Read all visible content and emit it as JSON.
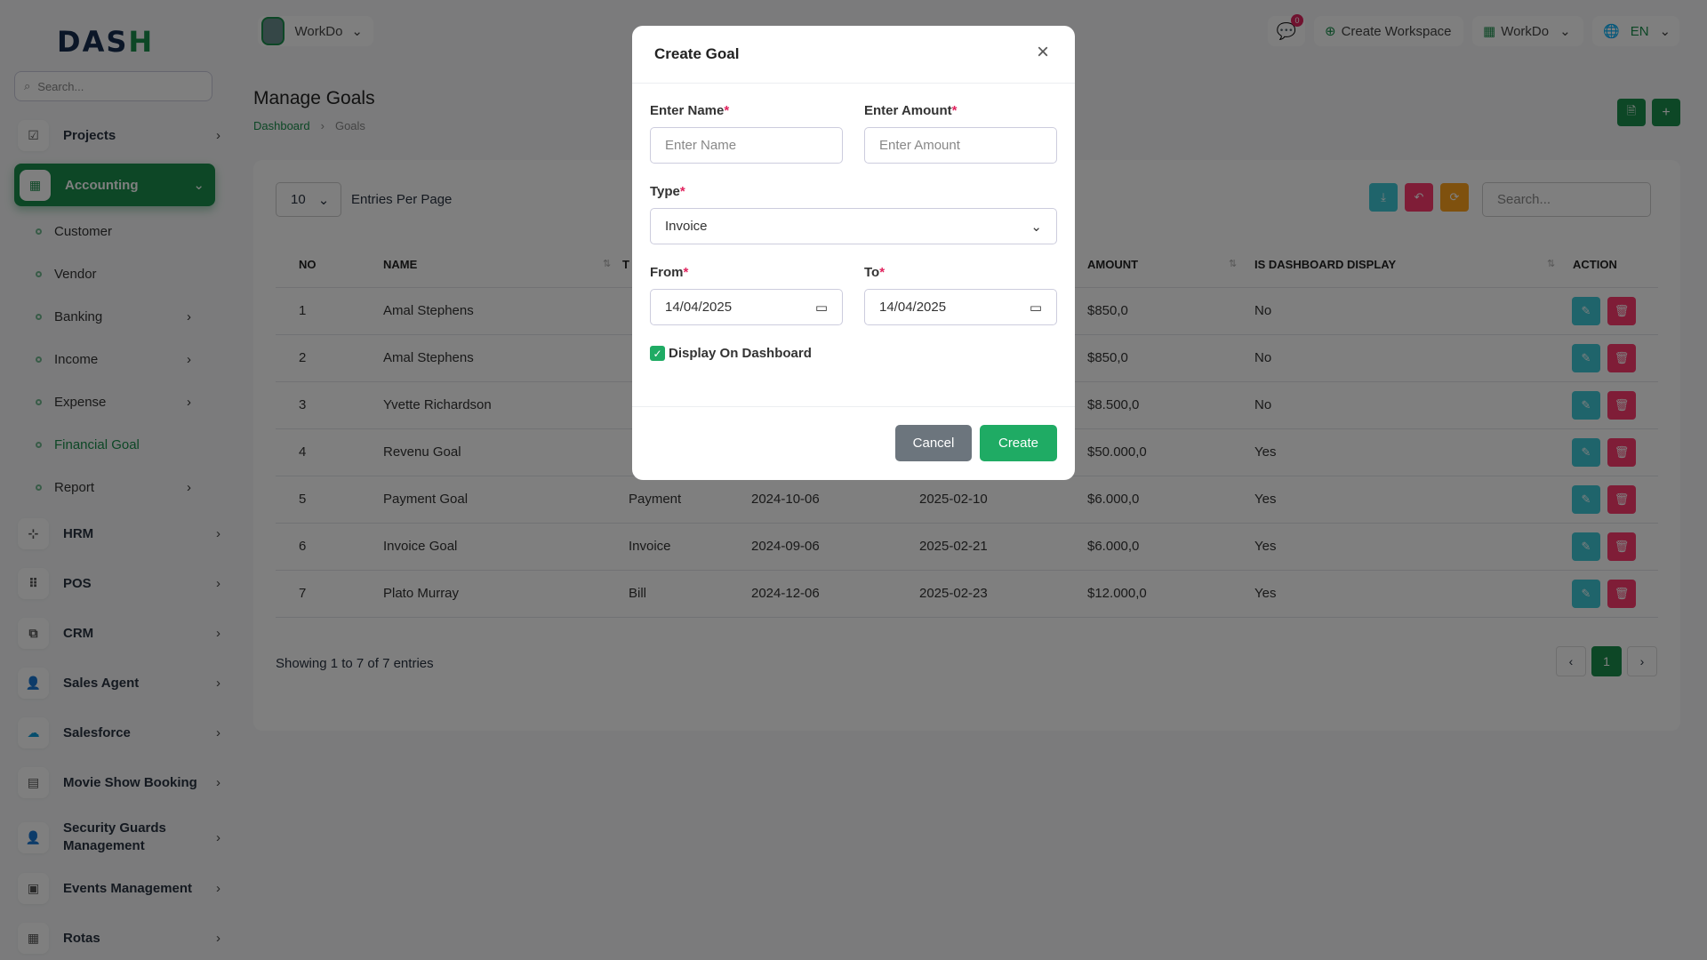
{
  "sidebar": {
    "logo": "DASH",
    "search_placeholder": "Search...",
    "items": [
      {
        "label": "Projects"
      },
      {
        "label": "Accounting"
      },
      {
        "label": "HRM"
      },
      {
        "label": "POS"
      },
      {
        "label": "CRM"
      },
      {
        "label": "Sales Agent"
      },
      {
        "label": "Salesforce"
      },
      {
        "label": "Movie Show Booking"
      },
      {
        "label": "Security Guards Management"
      },
      {
        "label": "Events Management"
      },
      {
        "label": "Rotas"
      }
    ],
    "accounting_sub": [
      {
        "label": "Customer"
      },
      {
        "label": "Vendor"
      },
      {
        "label": "Banking"
      },
      {
        "label": "Income"
      },
      {
        "label": "Expense"
      },
      {
        "label": "Financial Goal"
      },
      {
        "label": "Report"
      }
    ]
  },
  "topbar": {
    "workspace": "WorkDo",
    "notifications_count": "0",
    "create_workspace": "Create Workspace",
    "workdo_menu": "WorkDo",
    "language": "EN"
  },
  "page": {
    "title": "Manage Goals",
    "breadcrumb": [
      "Dashboard",
      "Goals"
    ]
  },
  "table": {
    "entries_value": "10",
    "entries_label": "Entries Per Page",
    "search_placeholder": "Search...",
    "headers": {
      "no": "NO",
      "name": "NAME",
      "type": "T",
      "amount": "AMOUNT",
      "dashboard": "IS DASHBOARD DISPLAY",
      "action": "ACTION"
    },
    "rows": [
      {
        "no": "1",
        "name": "Amal Stephens",
        "type": "",
        "start": "",
        "end": "",
        "amount": "$850,0",
        "dashboard": "No"
      },
      {
        "no": "2",
        "name": "Amal Stephens",
        "type": "",
        "start": "",
        "end": "",
        "amount": "$850,0",
        "dashboard": "No"
      },
      {
        "no": "3",
        "name": "Yvette Richardson",
        "type": "",
        "start": "",
        "end": "",
        "amount": "$8.500,0",
        "dashboard": "No"
      },
      {
        "no": "4",
        "name": "Revenu Goal",
        "type": "",
        "start": "",
        "end": "",
        "amount": "$50.000,0",
        "dashboard": "Yes"
      },
      {
        "no": "5",
        "name": "Payment Goal",
        "type": "Payment",
        "start": "2024-10-06",
        "end": "2025-02-10",
        "amount": "$6.000,0",
        "dashboard": "Yes"
      },
      {
        "no": "6",
        "name": "Invoice Goal",
        "type": "Invoice",
        "start": "2024-09-06",
        "end": "2025-02-21",
        "amount": "$6.000,0",
        "dashboard": "Yes"
      },
      {
        "no": "7",
        "name": "Plato Murray",
        "type": "Bill",
        "start": "2024-12-06",
        "end": "2025-02-23",
        "amount": "$12.000,0",
        "dashboard": "Yes"
      }
    ],
    "showing": "Showing 1 to 7 of 7 entries",
    "current_page": "1"
  },
  "modal": {
    "title": "Create Goal",
    "name_label": "Enter Name",
    "name_placeholder": "Enter Name",
    "amount_label": "Enter Amount",
    "amount_placeholder": "Enter Amount",
    "type_label": "Type",
    "type_value": "Invoice",
    "from_label": "From",
    "from_value": "14/04/2025",
    "to_label": "To",
    "to_value": "14/04/2025",
    "display_label": "Display On Dashboard",
    "display_checked": true,
    "required_mark": "*",
    "cancel": "Cancel",
    "create": "Create"
  },
  "colors": {
    "primary": "#1a8f4c",
    "info": "#3ec9d6",
    "danger": "#ff3a6e",
    "warning": "#ffa21d",
    "create": "#1fab64",
    "cancel": "#6c757d"
  }
}
